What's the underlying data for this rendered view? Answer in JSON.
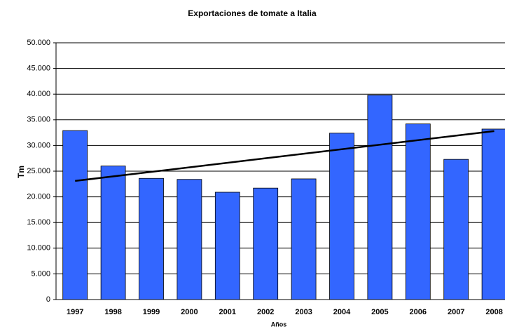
{
  "chart_data": {
    "type": "bar",
    "title": "Exportaciones de tomate a Italia",
    "x_label": "Años",
    "y_label": "Tm",
    "categories": [
      "1997",
      "1998",
      "1999",
      "2000",
      "2001",
      "2002",
      "2003",
      "2004",
      "2005",
      "2006",
      "2007",
      "2008"
    ],
    "values": [
      32900,
      26000,
      23600,
      23400,
      20900,
      21700,
      23500,
      32400,
      39800,
      34200,
      27300,
      33200
    ],
    "color": "#3366ff",
    "trend": [
      23100,
      32800
    ],
    "trend_color": "#000000",
    "ylim": [
      0,
      50000
    ],
    "yticks": [
      0,
      {
        "value": 5000,
        "label": "5.000"
      },
      {
        "value": 10000,
        "label": "10.000"
      },
      {
        "value": 15000,
        "label": "15.000"
      },
      {
        "value": 20000,
        "label": "20.000"
      },
      {
        "value": 25000,
        "label": "25.000"
      },
      {
        "value": 30000,
        "label": "30.000"
      },
      {
        "value": 35000,
        "label": "35.000"
      },
      {
        "value": 40000,
        "label": "40.000"
      },
      {
        "value": 45000,
        "label": "45.000"
      },
      {
        "value": 50000,
        "label": "50.000"
      }
    ],
    "grid": true
  }
}
